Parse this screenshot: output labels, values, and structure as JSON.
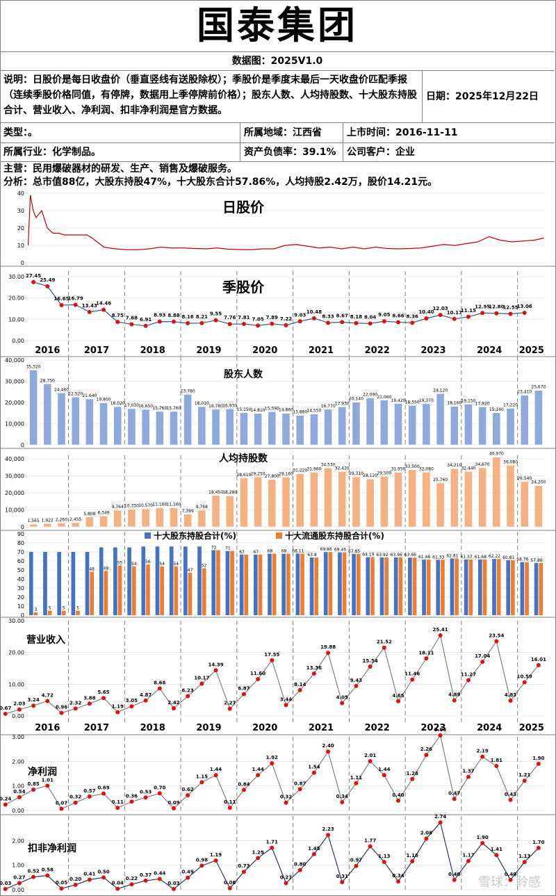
{
  "header": {
    "title": "国泰集团",
    "subtitle": "数据图：2025V1.0",
    "note": "说明：日股价是每日收盘价（垂直竖线有送股除权）；季股价是季度末最后一天收盘价匹配季报（连续季股价格同值，有停牌，数据用上季停牌前价格）；股东人数、人均持股数、十大股东持股合计、营业收入、净利润、扣非净利润是官方数据。",
    "date": "日期：2025年12月22日",
    "type": "类型：。",
    "region": "所属地域：江西省",
    "listing": "上市时间：2016-11-11",
    "industry": "所属行业：化学制品。",
    "debt": "资产负债率：39.1%",
    "client": "公司客户：企业",
    "business": "主营：民用爆破器材的研发、生产、销售及爆破服务。",
    "analysis": "分析：总市值88亿，大股东持股47%，十大股东合计57.86%，人均持股2.42万，股价14.21元。"
  },
  "watermark": "雪球：聆感",
  "colors": {
    "price": "#c00000",
    "blue": "#4472c4",
    "orange": "#ed7d31",
    "point": "#e01010",
    "line": "#2f5597",
    "grid": "#d9d9d9"
  },
  "chart_data": [
    {
      "type": "line",
      "title": "日股价",
      "ylim": [
        0,
        40
      ],
      "yticks": [
        0,
        10,
        20,
        30,
        40
      ],
      "note": "Daily closing price trace, approximate",
      "x": [
        2016.86,
        2016.9,
        2016.95,
        2017.0,
        2017.1,
        2017.2,
        2017.3,
        2017.4,
        2017.5,
        2017.6,
        2017.75,
        2017.9,
        2018.0,
        2018.2,
        2018.4,
        2018.6,
        2018.8,
        2019.0,
        2019.2,
        2019.4,
        2019.6,
        2019.8,
        2020.0,
        2020.2,
        2020.4,
        2020.6,
        2020.8,
        2021.0,
        2021.2,
        2021.4,
        2021.6,
        2021.8,
        2022.0,
        2022.2,
        2022.4,
        2022.6,
        2022.8,
        2023.0,
        2023.2,
        2023.4,
        2023.6,
        2023.8,
        2024.0,
        2024.2,
        2024.4,
        2024.6,
        2024.8,
        2025.0,
        2025.2,
        2025.4,
        2025.6,
        2025.8,
        2025.97
      ],
      "values": [
        10,
        39,
        30,
        26,
        30,
        20,
        17,
        17,
        16,
        16,
        16,
        16,
        14,
        9,
        8,
        7.5,
        7.5,
        8,
        9,
        8.5,
        8.5,
        8.2,
        8,
        8.5,
        7.8,
        7.6,
        7.5,
        8,
        8,
        10,
        10.5,
        9.5,
        8.5,
        9,
        8,
        9,
        8,
        9,
        8.2,
        8,
        8.2,
        8.5,
        9.5,
        10.5,
        10,
        11,
        12,
        15,
        13,
        12,
        12.5,
        13,
        14.2
      ]
    },
    {
      "type": "line",
      "title": "季股价",
      "ylim": [
        0,
        30
      ],
      "yticks": [
        "0.00",
        "10.00",
        "20.00",
        "30.00"
      ],
      "years": [
        "2016",
        "2017",
        "2018",
        "2019",
        "2020",
        "2021",
        "2022",
        "2023",
        "2024",
        "2025"
      ],
      "labels": [
        "27.45",
        "25.49",
        "16.65",
        "16.79",
        "13.43",
        "14.46",
        "8.75",
        "7.68",
        "6.91",
        "8.93",
        "8.88",
        "8.16",
        "8.21",
        "9.55",
        "7.76",
        "7.81",
        "7.05",
        "7.89",
        "7.22",
        "9.03",
        "10.48",
        "8.33",
        "8.67",
        "8.18",
        "8.04",
        "9.05",
        "8.66",
        "8.36",
        "10.40",
        "12.03",
        "10.17",
        "11.15",
        "12.95",
        "12.80",
        "12.55",
        "13.06"
      ],
      "values": [
        27.45,
        25.49,
        16.65,
        16.79,
        13.43,
        14.46,
        8.75,
        7.68,
        6.91,
        8.93,
        8.88,
        8.16,
        8.21,
        9.55,
        7.76,
        7.81,
        7.05,
        7.89,
        7.22,
        9.03,
        10.48,
        8.33,
        8.67,
        8.18,
        8.04,
        9.05,
        8.66,
        8.36,
        10.4,
        12.03,
        10.17,
        11.15,
        12.95,
        12.8,
        12.55,
        13.06
      ]
    },
    {
      "type": "bar",
      "title": "股东人数",
      "ylim": [
        0,
        40000
      ],
      "yticks": [
        "0",
        "10,000",
        "20,000",
        "30,000",
        "40,000"
      ],
      "labels": [
        "35,320",
        "28,750",
        "24,460",
        "22,520",
        "21,640",
        "19,800",
        "18,020",
        "17,030",
        "16,650",
        "15,760",
        "15,760",
        "23,780",
        "18,010",
        "16,780",
        "16,930",
        "15,150",
        "14,810",
        "15,590",
        "14,860",
        "13,880",
        "14,550",
        "16,770",
        "17,930",
        "20,140",
        "22,090",
        "21,060",
        "19,420",
        "18,550",
        "19,370",
        "24,120",
        "18,160",
        "19,150",
        "17,920",
        "15,160",
        "17,220",
        "23,410",
        "25,670"
      ],
      "values": [
        35320,
        28750,
        24460,
        22520,
        21640,
        19800,
        18020,
        17030,
        16650,
        15760,
        15760,
        23780,
        18010,
        16780,
        16930,
        15150,
        14810,
        15590,
        14860,
        13880,
        14550,
        16770,
        17930,
        20140,
        22090,
        21060,
        19420,
        18550,
        19370,
        24120,
        18160,
        19150,
        17920,
        15160,
        17220,
        23410,
        25670
      ]
    },
    {
      "type": "bar",
      "title": "人均持股数",
      "ylim": [
        0,
        40000
      ],
      "yticks": [
        "0",
        "10,000",
        "20,000",
        "30,000",
        "40,000"
      ],
      "labels": [
        "1,565",
        "1,922",
        "2,260",
        "2,455",
        "5,808",
        "6,349",
        "9,764",
        "10,330",
        "10,570",
        "11,160",
        "11,160",
        "7,399",
        "9,768",
        "18,450",
        "18,280",
        "28,610",
        "29,250",
        "27,800",
        "29,160",
        "31,220",
        "31,960",
        "34,530",
        "32,420",
        "29,310",
        "28,120",
        "29,500",
        "31,950",
        "33,500",
        "32,080",
        "25,760",
        "34,210",
        "32,440",
        "34,670",
        "40,970",
        "36,080",
        "26,540",
        "24,200"
      ],
      "values": [
        1565,
        1922,
        2260,
        2455,
        5808,
        6349,
        9764,
        10330,
        10570,
        11160,
        11160,
        7399,
        9768,
        18450,
        18280,
        28610,
        29250,
        27800,
        29160,
        31220,
        31960,
        34530,
        32420,
        29310,
        28120,
        29500,
        31950,
        33500,
        32080,
        25760,
        34210,
        32440,
        34670,
        40970,
        36080,
        26540,
        24200
      ]
    },
    {
      "type": "bar",
      "title": "",
      "ylim": [
        0,
        90
      ],
      "yticks": [
        "0",
        "10",
        "20",
        "30",
        "40",
        "50",
        "60",
        "70",
        "80",
        "90"
      ],
      "legend": [
        "十大股东持股合计(%)",
        "十大流通股东持股合计(%)"
      ],
      "categories_count": 37,
      "series": [
        {
          "name": "十大股东持股合计(%)",
          "values": [
            70,
            70,
            70,
            70,
            70,
            75,
            75,
            75,
            76,
            76,
            76,
            76,
            76,
            72,
            71,
            67,
            67,
            68,
            68,
            68.11,
            63.8,
            69.86,
            69.46,
            67.85,
            64.19,
            63.92,
            63.96,
            63.66,
            61.48,
            61.33,
            62.81,
            61.57,
            61.68,
            62.22,
            60.81,
            58.76,
            57.86
          ]
        },
        {
          "name": "十大流通股东持股合计(%)",
          "values": [
            3,
            5,
            5,
            5,
            48,
            49,
            55,
            54,
            56,
            54,
            54,
            47,
            52,
            72,
            71,
            67,
            67,
            68,
            68,
            68.11,
            63.8,
            69.86,
            69.46,
            67.85,
            64.19,
            63.92,
            63.96,
            63.66,
            61.48,
            61.33,
            62.81,
            61.57,
            61.68,
            62.22,
            60.81,
            58.76,
            57.86
          ]
        }
      ],
      "blue_labels": [
        "",
        "",
        "",
        "",
        "",
        "",
        "",
        "",
        "",
        "",
        "",
        "",
        "",
        "72",
        "71",
        "67",
        "67",
        "68",
        "68",
        "68.11",
        "63.8",
        "69.86",
        "69.46",
        "67.85",
        "64.19",
        "63.92",
        "63.96",
        "63.66",
        "61.48",
        "61.33",
        "62.81",
        "61.57",
        "61.68",
        "62.22",
        "60.81",
        "58.76",
        "57.86"
      ],
      "orange_labels": [
        "3",
        "5",
        "5",
        "5",
        "48",
        "49",
        "55",
        "54",
        "56",
        "54",
        "54",
        "47",
        "52",
        "",
        "",
        "",
        "",
        "",
        "",
        "",
        "",
        "",
        "",
        "",
        "",
        "",
        "",
        "",
        "",
        "",
        "",
        "",
        "",
        "",
        "",
        "",
        ""
      ]
    },
    {
      "type": "line",
      "title": "营业收入",
      "ylim": [
        0,
        30
      ],
      "yticks": [
        "0.00",
        "10.00",
        "20.00",
        "30.00"
      ],
      "years": [
        "2016",
        "2017",
        "2018",
        "2019",
        "2020",
        "2021",
        "2022",
        "2023",
        "2024",
        "2025"
      ],
      "labels": [
        "0.67",
        "2.03",
        "3.24",
        "4.72",
        "0.96",
        "2.32",
        "3.88",
        "5.65",
        "1.19",
        "3.05",
        "4.87",
        "8.68",
        "2.42",
        "6.23",
        "10.17",
        "14.39",
        "2.27",
        "6.87",
        "11.60",
        "17.55",
        "3.44",
        "8.14",
        "13.36",
        "19.88",
        "4.05",
        "9.43",
        "15.54",
        "21.52",
        "4.65",
        "11.46",
        "18.11",
        "25.41",
        "4.89",
        "11.27",
        "17.04",
        "23.54",
        "4.83",
        "10.59",
        "16.01"
      ],
      "values": [
        0.67,
        2.03,
        3.24,
        4.72,
        0.96,
        2.32,
        3.88,
        5.65,
        1.19,
        3.05,
        4.87,
        8.68,
        2.42,
        6.23,
        10.17,
        14.39,
        2.27,
        6.87,
        11.6,
        17.55,
        3.44,
        8.14,
        13.36,
        19.88,
        4.05,
        9.43,
        15.54,
        21.52,
        4.65,
        11.46,
        18.11,
        25.41,
        4.89,
        11.27,
        17.04,
        23.54,
        4.83,
        10.59,
        16.01
      ]
    },
    {
      "type": "line",
      "title": "净利润",
      "ylim": [
        0,
        3
      ],
      "yticks": [
        "0.00",
        "1.00",
        "2.00",
        "3.00"
      ],
      "labels": [
        "0.24",
        "0.54",
        "0.85",
        "1.01",
        "0.07",
        "0.32",
        "0.57",
        "0.69",
        "0.11",
        "0.36",
        "0.53",
        "0.70",
        "0.09",
        "0.62",
        "1.15",
        "1.44",
        "0.11",
        "0.84",
        "1.44",
        "1.92",
        "0.32",
        "0.87",
        "1.54",
        "2.40",
        "0.34",
        "1.11",
        "2.01",
        "1.44",
        "0.40",
        "1.28",
        "2.26",
        "3.06",
        "0.47",
        "1.37",
        "2.19",
        "1.81",
        "0.43",
        "1.21",
        "1.90"
      ],
      "values": [
        0.24,
        0.54,
        0.85,
        1.01,
        0.07,
        0.32,
        0.57,
        0.69,
        0.11,
        0.36,
        0.53,
        0.7,
        0.09,
        0.62,
        1.15,
        1.44,
        0.11,
        0.84,
        1.44,
        1.92,
        0.32,
        0.87,
        1.54,
        2.4,
        0.34,
        1.11,
        2.01,
        1.44,
        0.4,
        1.28,
        2.26,
        3.06,
        0.47,
        1.37,
        2.19,
        1.81,
        0.43,
        1.21,
        1.9
      ]
    },
    {
      "type": "line",
      "title": "扣非净利润",
      "ylim": [
        0,
        3
      ],
      "yticks": [
        "0.00",
        "1.00",
        "2.00"
      ],
      "labels": [
        "0.03",
        "0.27",
        "0.52",
        "0.58",
        "0.05",
        "0.20",
        "0.41",
        "0.50",
        "0.04",
        "0.22",
        "0.37",
        "0.44",
        "0.03",
        "0.49",
        "0.98",
        "1.19",
        "0.06",
        "0.73",
        "1.29",
        "1.71",
        "0.27",
        "0.80",
        "1.45",
        "2.23",
        "0.31",
        "0.97",
        "1.77",
        "1.13",
        "0.34",
        "1.16",
        "2.08",
        "2.74",
        "0.40",
        "1.17",
        "1.90",
        "1.41",
        "0.40",
        "1.13",
        "1.70"
      ],
      "values": [
        0.03,
        0.27,
        0.52,
        0.58,
        0.05,
        0.2,
        0.41,
        0.5,
        0.04,
        0.22,
        0.37,
        0.44,
        0.03,
        0.49,
        0.98,
        1.19,
        0.06,
        0.73,
        1.29,
        1.71,
        0.27,
        0.8,
        1.45,
        2.23,
        0.31,
        0.97,
        1.77,
        1.13,
        0.34,
        1.16,
        2.08,
        2.74,
        0.4,
        1.17,
        1.9,
        1.41,
        0.4,
        1.13,
        1.7
      ]
    }
  ]
}
